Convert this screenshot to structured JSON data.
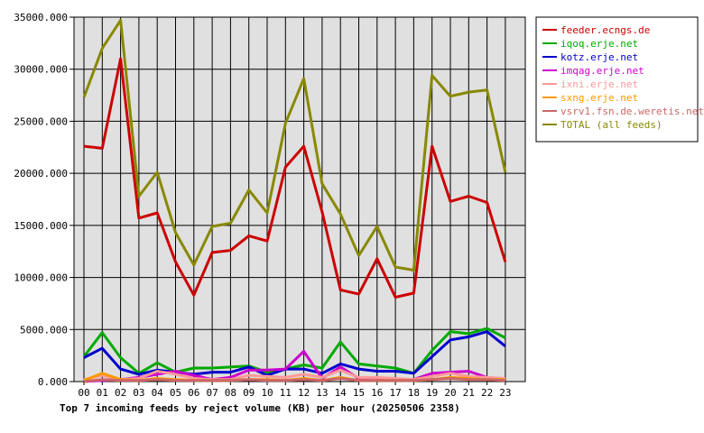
{
  "chart_data": {
    "type": "line",
    "caption": "Top 7 incoming feeds by reject volume (KB) per hour (20250506 2358)",
    "categories": [
      "00",
      "01",
      "02",
      "03",
      "04",
      "05",
      "06",
      "07",
      "08",
      "09",
      "10",
      "11",
      "12",
      "13",
      "14",
      "15",
      "16",
      "17",
      "18",
      "19",
      "20",
      "21",
      "22",
      "23"
    ],
    "y_ticks": [
      "0.000",
      "5000.000",
      "10000.000",
      "15000.000",
      "20000.000",
      "25000.000",
      "30000.000",
      "35000.000"
    ],
    "ylim": [
      0,
      35000
    ],
    "grid": true,
    "legend_position": "right",
    "series": [
      {
        "name": "feeder.ecngs.de",
        "color": "#cc0000",
        "values": [
          22600,
          22400,
          31000,
          15700,
          16200,
          11500,
          8300,
          12400,
          12600,
          14000,
          13500,
          20600,
          22600,
          16300,
          8800,
          8400,
          11800,
          8100,
          8500,
          22600,
          17300,
          17800,
          17200,
          11500
        ]
      },
      {
        "name": "iqoq.erje.net",
        "color": "#00aa00",
        "values": [
          2400,
          4700,
          2300,
          800,
          1800,
          900,
          1300,
          1300,
          1400,
          1500,
          900,
          1200,
          1600,
          1300,
          3800,
          1700,
          1500,
          1300,
          800,
          3000,
          4800,
          4600,
          5100,
          4200
        ]
      },
      {
        "name": "kotz.erje.net",
        "color": "#0000cc",
        "values": [
          2300,
          3200,
          1200,
          700,
          1100,
          900,
          700,
          900,
          900,
          1400,
          600,
          1200,
          1200,
          800,
          1700,
          1200,
          1000,
          1000,
          800,
          2400,
          4000,
          4300,
          4800,
          3400
        ]
      },
      {
        "name": "imqag.erje.net",
        "color": "#cc00cc",
        "values": [
          0,
          100,
          200,
          400,
          700,
          1000,
          600,
          200,
          400,
          1100,
          1100,
          1200,
          2900,
          300,
          1400,
          300,
          400,
          100,
          200,
          800,
          900,
          1000,
          400,
          200
        ]
      },
      {
        "name": "ixni.erje.net",
        "color": "#ff9999",
        "values": [
          200,
          600,
          200,
          300,
          1000,
          700,
          300,
          200,
          200,
          600,
          500,
          400,
          700,
          400,
          1100,
          400,
          400,
          300,
          200,
          500,
          800,
          500,
          400,
          300
        ]
      },
      {
        "name": "sxng.erje.net",
        "color": "#ff9900",
        "values": [
          100,
          800,
          200,
          100,
          300,
          200,
          100,
          100,
          100,
          200,
          200,
          100,
          300,
          100,
          400,
          100,
          100,
          100,
          100,
          200,
          400,
          300,
          200,
          200
        ]
      },
      {
        "name": "vsrv1.fsn.de.weretis.net",
        "color": "#cc6666",
        "values": [
          0,
          200,
          100,
          100,
          200,
          100,
          100,
          100,
          100,
          200,
          100,
          100,
          200,
          100,
          300,
          100,
          100,
          100,
          100,
          200,
          300,
          200,
          200,
          100
        ]
      },
      {
        "name": "TOTAL (all feeds)",
        "color": "#888800",
        "values": [
          27300,
          32000,
          34700,
          17800,
          20100,
          14300,
          11200,
          14900,
          15200,
          18400,
          16200,
          24800,
          29100,
          19000,
          16100,
          12100,
          14900,
          11000,
          10700,
          29400,
          27400,
          27800,
          28000,
          20100
        ]
      }
    ]
  }
}
